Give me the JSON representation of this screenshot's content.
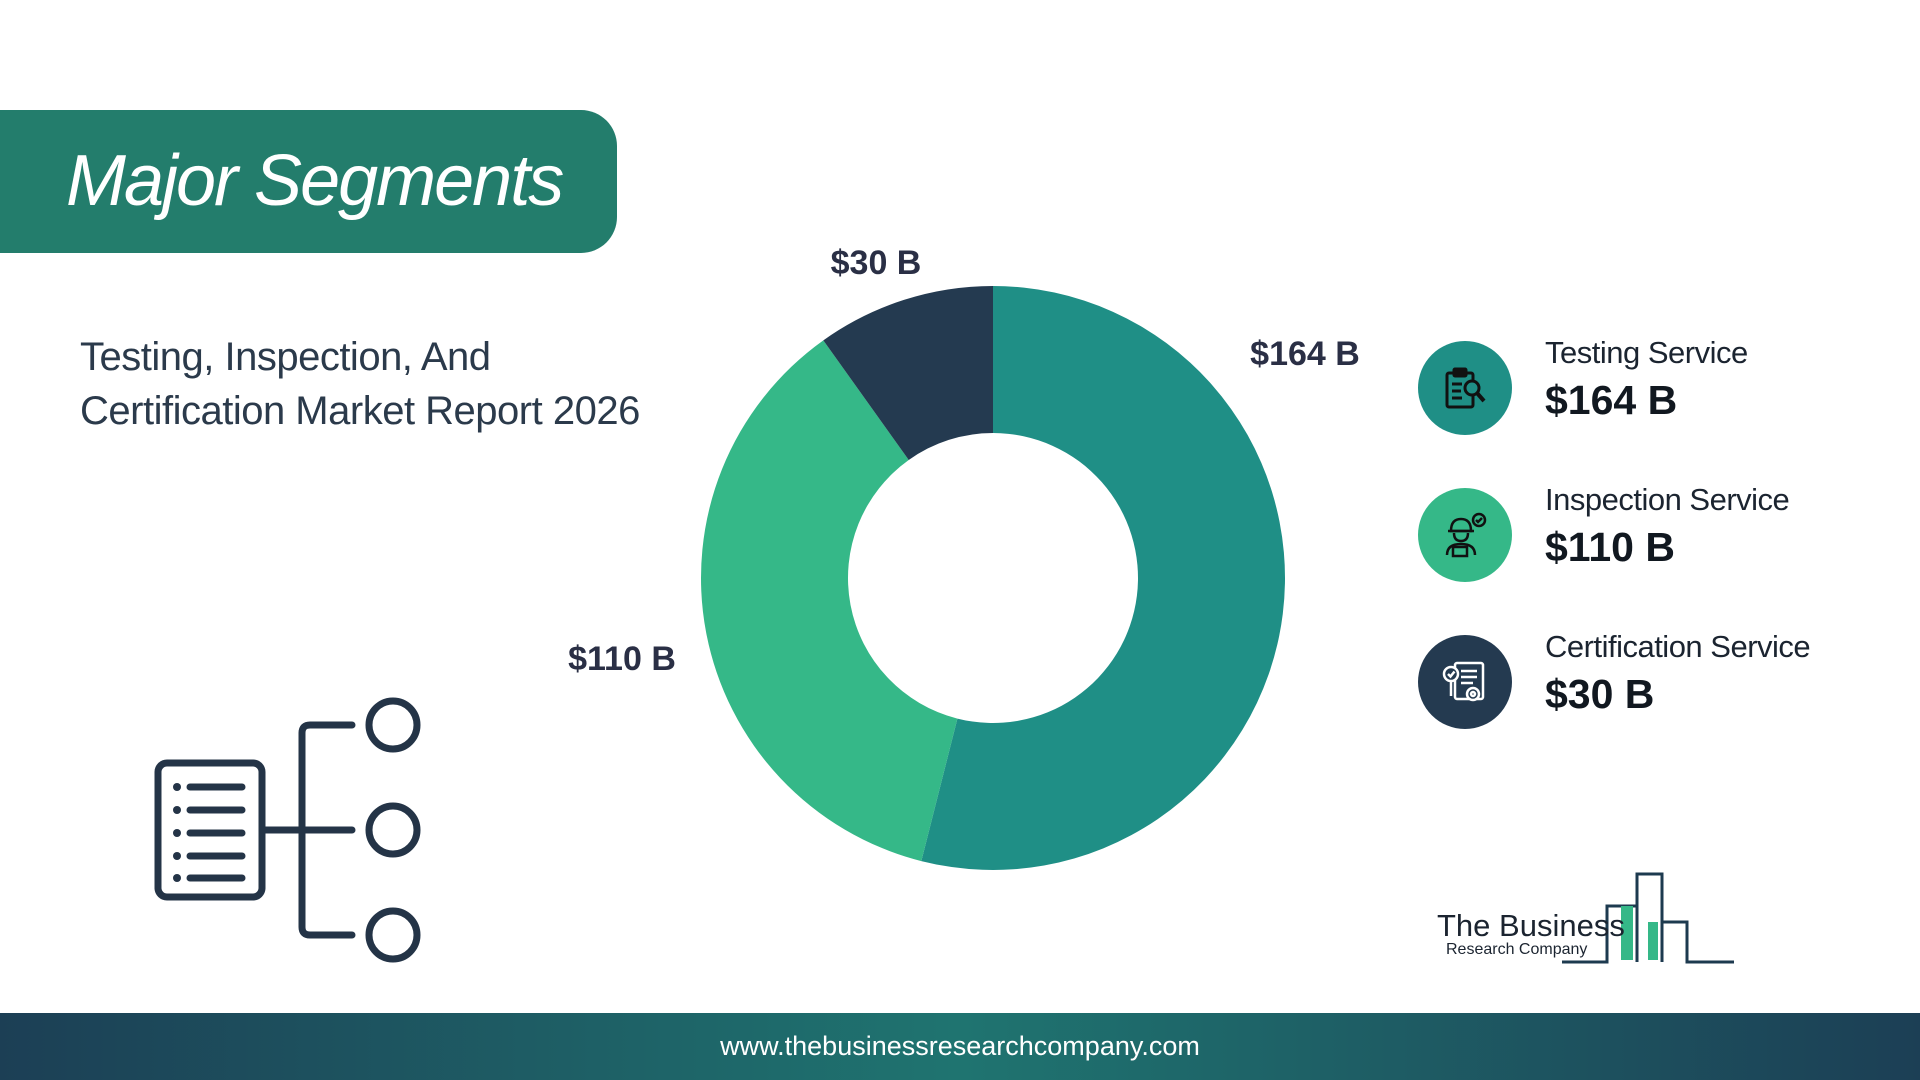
{
  "banner": {
    "title": "Major Segments"
  },
  "subtitle": {
    "line1": "Testing, Inspection, And",
    "line2": "Certification Market Report 2026"
  },
  "chart_data": {
    "type": "pie",
    "donut": true,
    "title": "",
    "labels": [
      "Testing Service",
      "Inspection Service",
      "Certification Service"
    ],
    "values": [
      164,
      110,
      30
    ],
    "value_labels": [
      "$164 B",
      "$110 B",
      "$30 B"
    ],
    "unit": "$ B",
    "colors": [
      "#1f8f86",
      "#35b888",
      "#243a50"
    ],
    "legend_position": "right"
  },
  "legend": {
    "items": [
      {
        "name": "Testing Service",
        "value": "$164 B",
        "icon": "clipboard-search-icon",
        "color": "#1f8f86"
      },
      {
        "name": "Inspection Service",
        "value": "$110 B",
        "icon": "inspector-icon",
        "color": "#35b888"
      },
      {
        "name": "Certification Service",
        "value": "$30 B",
        "icon": "certificate-icon",
        "color": "#243a50"
      }
    ]
  },
  "logo": {
    "line1": "The Business",
    "line2": "Research Company"
  },
  "footer": {
    "url": "www.thebusinessresearchcompany.com"
  }
}
